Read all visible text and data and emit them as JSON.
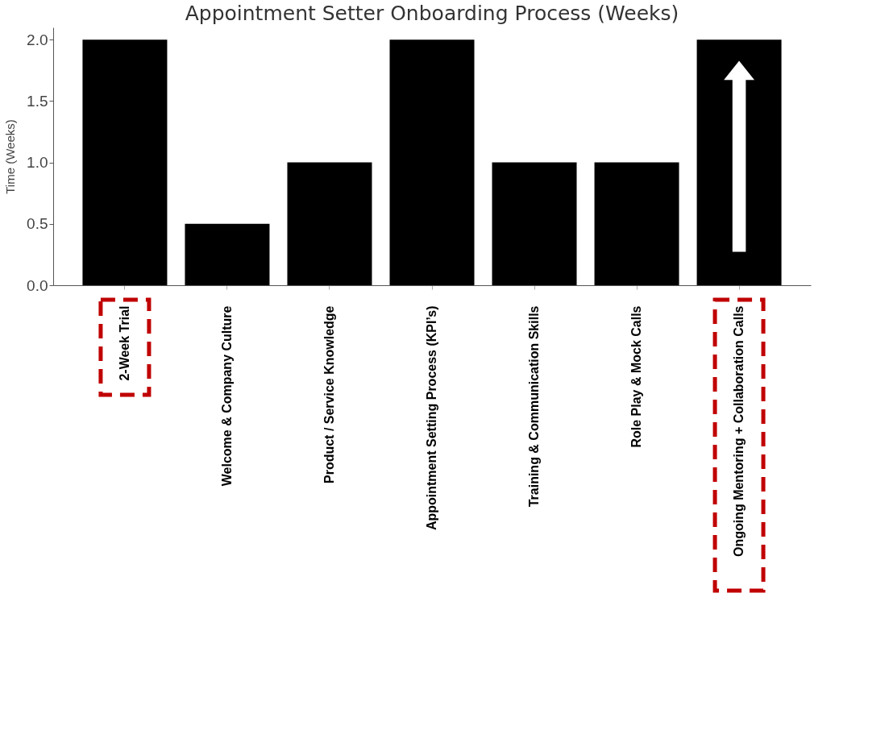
{
  "chart_data": {
    "type": "bar",
    "title": "Appointment Setter Onboarding Process (Weeks)",
    "ylabel": "Time (Weeks)",
    "categories": [
      "2-Week Trial",
      "Welcome & Company Culture",
      "Product / Service Knowledge",
      "Appointment Setting Process (KPI’s)",
      "Training & Communication Skills",
      "Role Play & Mock Calls",
      "Ongoing Mentoring + Collaboration Calls"
    ],
    "values": [
      2.0,
      0.5,
      1.0,
      2.0,
      1.0,
      1.0,
      2.0
    ],
    "color": "#000000",
    "ylim": [
      0,
      2.1
    ],
    "yticks": [
      {
        "value": 0,
        "label": "0.0"
      },
      0.5,
      {
        "value": 1,
        "label": "1.0"
      },
      1.5,
      {
        "value": 2,
        "label": "2.0"
      }
    ],
    "grid": false
  }
}
